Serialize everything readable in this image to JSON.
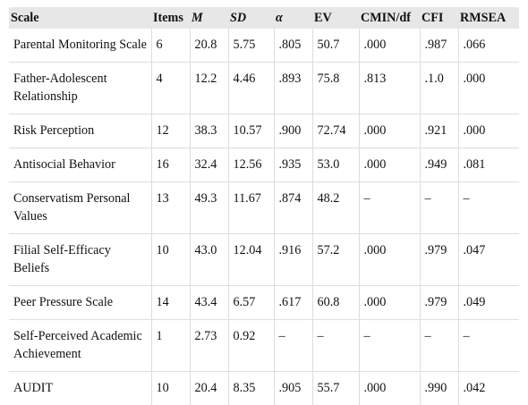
{
  "table": {
    "headers": [
      {
        "label": "Scale",
        "italic": false
      },
      {
        "label": "Items",
        "italic": false
      },
      {
        "label": "M",
        "italic": true
      },
      {
        "label": "SD",
        "italic": true
      },
      {
        "label": "α",
        "italic": true
      },
      {
        "label": "EV",
        "italic": false
      },
      {
        "label": "CMIN/df",
        "italic": false
      },
      {
        "label": "CFI",
        "italic": false
      },
      {
        "label": "RMSEA",
        "italic": false
      }
    ],
    "rows": [
      [
        "Parental Monitoring Scale",
        "6",
        "20.8",
        "5.75",
        ".805",
        "50.7",
        ".000",
        ".987",
        ".066"
      ],
      [
        "Father-Adolescent Relationship",
        "4",
        "12.2",
        "4.46",
        ".893",
        "75.8",
        ".813",
        ".1.0",
        ".000"
      ],
      [
        "Risk Perception",
        "12",
        "38.3",
        "10.57",
        ".900",
        "72.74",
        ".000",
        ".921",
        ".000"
      ],
      [
        "Antisocial Behavior",
        "16",
        "32.4",
        "12.56",
        ".935",
        "53.0",
        ".000",
        ".949",
        ".081"
      ],
      [
        "Conservatism Personal Values",
        "13",
        "49.3",
        "11.67",
        ".874",
        "48.2",
        "–",
        "–",
        "–"
      ],
      [
        "Filial Self-Efficacy Beliefs",
        "10",
        "43.0",
        "12.04",
        ".916",
        "57.2",
        ".000",
        ".979",
        ".047"
      ],
      [
        "Peer Pressure Scale",
        "14",
        "43.4",
        "6.57",
        ".617",
        "60.8",
        ".000",
        ".979",
        ".049"
      ],
      [
        "Self-Perceived Academic Achievement",
        "1",
        "2.73",
        "0.92",
        "–",
        "–",
        "–",
        "–",
        "–"
      ],
      [
        "AUDIT",
        "10",
        "20.4",
        "8.35",
        ".905",
        "55.7",
        ".000",
        ".990",
        ".042"
      ]
    ]
  }
}
